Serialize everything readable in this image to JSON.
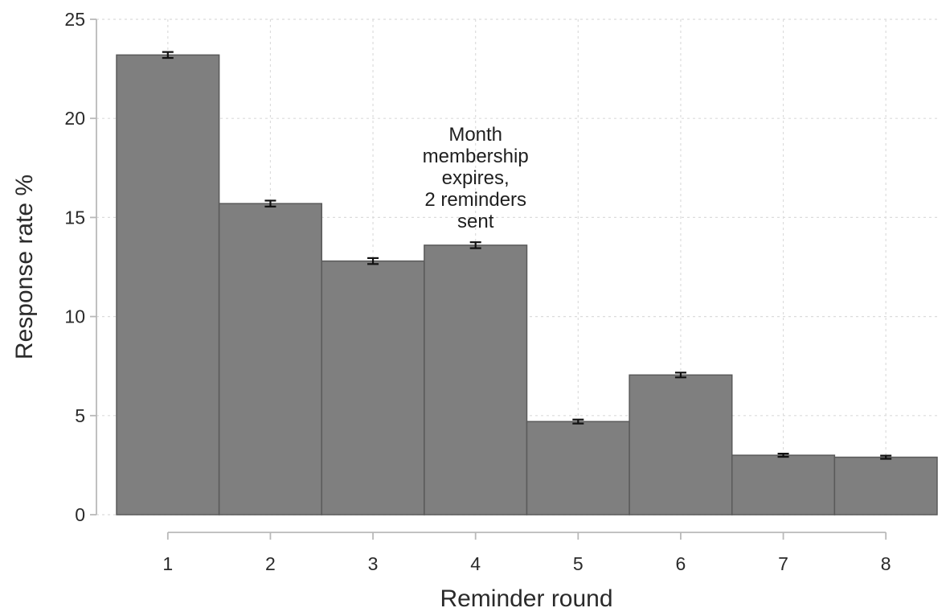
{
  "chart_data": {
    "type": "bar",
    "categories": [
      "1",
      "2",
      "3",
      "4",
      "5",
      "6",
      "7",
      "8"
    ],
    "values": [
      23.2,
      15.7,
      12.8,
      13.6,
      4.7,
      7.05,
      3.0,
      2.9
    ],
    "error_bars": [
      [
        23.05,
        23.35
      ],
      [
        15.55,
        15.85
      ],
      [
        12.65,
        12.95
      ],
      [
        13.45,
        13.75
      ],
      [
        4.6,
        4.8
      ],
      [
        6.93,
        7.17
      ],
      [
        2.92,
        3.08
      ],
      [
        2.82,
        2.98
      ]
    ],
    "xlabel": "Reminder round",
    "ylabel": "Response rate %",
    "ylim": [
      0,
      25
    ],
    "yticks": [
      0,
      5,
      10,
      15,
      20,
      25
    ],
    "grid": true,
    "bar_color": "#7f7f7f",
    "annotation": {
      "category": "4",
      "lines": [
        "Month",
        "membership",
        "expires,",
        "2 reminders",
        "sent"
      ]
    }
  }
}
